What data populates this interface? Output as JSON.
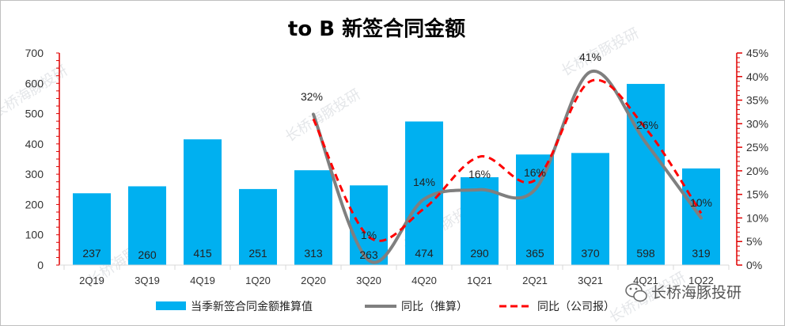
{
  "title": "to B 新签合同金额",
  "watermark": "长桥海豚投研",
  "brand": {
    "name": "长桥海豚投研",
    "icon": "wechat-bubble-icon"
  },
  "chart_data": {
    "type": "bar",
    "categories": [
      "2Q19",
      "3Q19",
      "4Q19",
      "1Q20",
      "2Q20",
      "3Q20",
      "4Q20",
      "1Q21",
      "2Q21",
      "3Q21",
      "4Q21",
      "1Q22"
    ],
    "left_axis": {
      "ylim": [
        0,
        700
      ],
      "ticks": [
        "0",
        "100",
        "200",
        "300",
        "400",
        "500",
        "600",
        "700"
      ]
    },
    "right_axis": {
      "ylim": [
        0,
        45
      ],
      "ticks": [
        "0%",
        "5%",
        "10%",
        "15%",
        "20%",
        "25%",
        "30%",
        "35%",
        "40%",
        "45%"
      ],
      "color": "#e00000"
    },
    "series": [
      {
        "name": "当季新签合同金额推算值",
        "kind": "bar",
        "axis": "left",
        "color": "#00b0f0",
        "values": [
          237,
          260,
          415,
          251,
          313,
          263,
          474,
          290,
          365,
          370,
          598,
          319
        ],
        "labels": [
          "237",
          "260",
          "415",
          "251",
          "313",
          "263",
          "474",
          "290",
          "365",
          "370",
          "598",
          "319"
        ]
      },
      {
        "name": "同比（推算）",
        "kind": "line",
        "axis": "right",
        "color": "#7f7f7f",
        "x": [
          "2Q20",
          "3Q20",
          "4Q20",
          "1Q21",
          "2Q21",
          "3Q21",
          "4Q21",
          "1Q22"
        ],
        "values": [
          32,
          1,
          14,
          16,
          16,
          41,
          26,
          10
        ],
        "labels": [
          "32%",
          "1%",
          "14%",
          "16%",
          "16%",
          "41%",
          "26%",
          "10%"
        ]
      },
      {
        "name": "同比（公司报）",
        "kind": "line-dashed",
        "axis": "right",
        "color": "#ff0000",
        "x": [
          "2Q20",
          "3Q20",
          "4Q20",
          "1Q21",
          "2Q21",
          "3Q21",
          "4Q21",
          "1Q22"
        ],
        "values": [
          31,
          6,
          12,
          23,
          18,
          39,
          29,
          11
        ]
      }
    ],
    "legend_position": "bottom"
  }
}
